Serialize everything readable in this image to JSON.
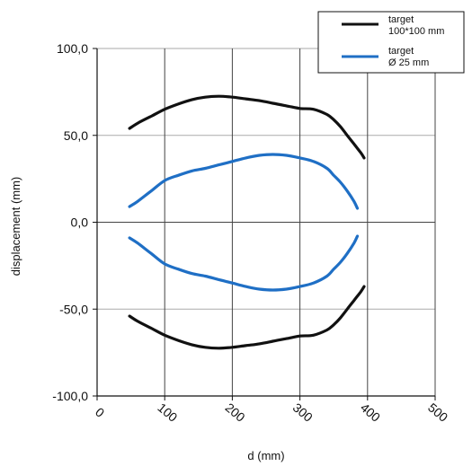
{
  "chart_data": {
    "type": "line",
    "title": "",
    "xlabel": "d (mm)",
    "ylabel": "displacement (mm)",
    "xlim": [
      0,
      500
    ],
    "ylim": [
      -100,
      100
    ],
    "x_ticks": [
      0,
      100,
      200,
      300,
      400,
      500
    ],
    "x_tick_labels": [
      "0",
      "100",
      "200",
      "300",
      "400",
      "500"
    ],
    "y_ticks": [
      -100,
      -50,
      0,
      50,
      100
    ],
    "y_tick_labels": [
      "-100,0",
      "-50,0",
      "0,0",
      "50,0",
      "100,0"
    ],
    "grid": "major gridlines on both axes",
    "legend_position": "top-right",
    "series": [
      {
        "name": "target\n100*100 mm",
        "color": "#111111",
        "upper": {
          "x": [
            48,
            60,
            80,
            100,
            120,
            140,
            160,
            180,
            200,
            220,
            240,
            260,
            280,
            300,
            320,
            340,
            350,
            360,
            370,
            380,
            390,
            395
          ],
          "y": [
            54,
            57,
            61,
            65,
            68,
            70.5,
            72,
            72.5,
            72,
            71,
            70,
            68.5,
            67,
            65.5,
            65,
            62,
            59,
            55,
            50,
            45,
            40,
            37
          ]
        },
        "lower": {
          "x": [
            48,
            60,
            80,
            100,
            120,
            140,
            160,
            180,
            200,
            220,
            240,
            260,
            280,
            300,
            320,
            340,
            350,
            360,
            370,
            380,
            390,
            395
          ],
          "y": [
            -54,
            -57,
            -61,
            -65,
            -68,
            -70.5,
            -72,
            -72.5,
            -72,
            -71,
            -70,
            -68.5,
            -67,
            -65.5,
            -65,
            -62,
            -59,
            -55,
            -50,
            -45,
            -40,
            -37
          ]
        }
      },
      {
        "name": "target\nØ 25 mm",
        "color": "#1f6fc5",
        "upper": {
          "x": [
            48,
            60,
            80,
            100,
            120,
            140,
            160,
            180,
            200,
            220,
            240,
            260,
            280,
            300,
            320,
            340,
            350,
            360,
            370,
            380,
            385
          ],
          "y": [
            9,
            12,
            18,
            24,
            27,
            29.5,
            31,
            33,
            35,
            37,
            38.5,
            39,
            38.5,
            37,
            35,
            31,
            27,
            23,
            18,
            12,
            8
          ]
        },
        "lower": {
          "x": [
            48,
            60,
            80,
            100,
            120,
            140,
            160,
            180,
            200,
            220,
            240,
            260,
            280,
            300,
            320,
            340,
            350,
            360,
            370,
            380,
            385
          ],
          "y": [
            -9,
            -12,
            -18,
            -24,
            -27,
            -29.5,
            -31,
            -33,
            -35,
            -37,
            -38.5,
            -39,
            -38.5,
            -37,
            -35,
            -31,
            -27,
            -23,
            -18,
            -12,
            -8
          ]
        }
      }
    ]
  }
}
